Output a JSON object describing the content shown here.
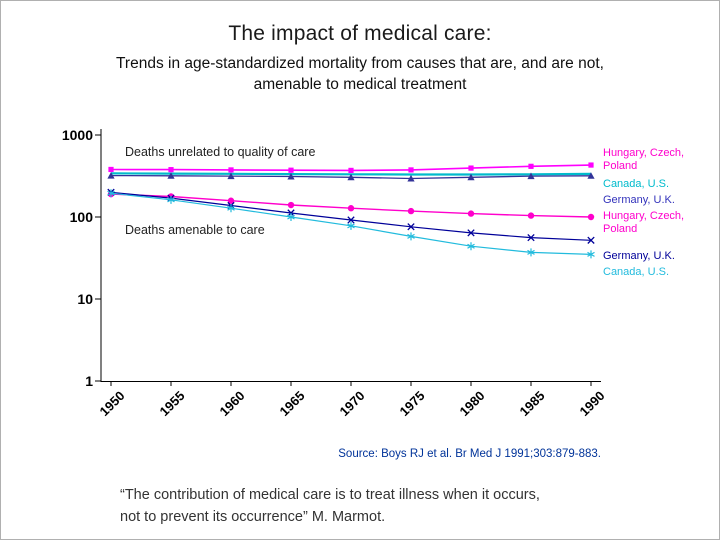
{
  "slide": {
    "title": "The impact of medical care:",
    "subtitle_line1": "Trends in age-standardized mortality from causes that are, and are not,",
    "subtitle_line2": "amenable to medical treatment",
    "source": "Source: Boys RJ et al. Br Med J 1991;303:879-883.",
    "quote_line1": "“The contribution of medical care is to treat illness when it occurs,",
    "quote_line2": "not to prevent its occurrence”  M. Marmot."
  },
  "annotations": {
    "unrelated": "Deaths unrelated to quality of care",
    "amenable": "Deaths amenable to care"
  },
  "legend": [
    {
      "lines": [
        "Hungary, Czech,",
        "Poland"
      ],
      "color": "#FF00CC"
    },
    {
      "lines": [
        "Canada, U.S."
      ],
      "color": "#00BBCC"
    },
    {
      "lines": [
        "Germany, U.K."
      ],
      "color": "#3333BB"
    },
    {
      "lines": [
        "Hungary, Czech,",
        "Poland"
      ],
      "color": "#FF00CC"
    },
    {
      "lines": [
        "Germany, U.K."
      ],
      "color": "#000099"
    },
    {
      "lines": [
        "Canada, U.S."
      ],
      "color": "#22BBDD"
    }
  ],
  "chart_data": {
    "type": "line",
    "title": "",
    "xlabel": "",
    "ylabel": "",
    "y_scale": "log",
    "ylim": [
      1,
      1000
    ],
    "y_ticks": [
      1000,
      100,
      10,
      1
    ],
    "x": [
      1950,
      1955,
      1960,
      1965,
      1970,
      1975,
      1980,
      1985,
      1990
    ],
    "grid": false,
    "legend_position": "right",
    "series": [
      {
        "name": "Deaths unrelated to care - Hungary, Czech, Poland",
        "color": "#FF00FF",
        "marker": "square",
        "width": 1.6,
        "values": [
          380,
          378,
          375,
          372,
          370,
          375,
          395,
          415,
          430
        ]
      },
      {
        "name": "Deaths unrelated to care - Canada, U.S.",
        "color": "#00BBCC",
        "marker": "none",
        "width": 2.2,
        "values": [
          340,
          338,
          336,
          334,
          332,
          330,
          330,
          332,
          335
        ]
      },
      {
        "name": "Deaths unrelated to care - Germany, U.K.",
        "color": "#333399",
        "marker": "triangle",
        "width": 1.3,
        "values": [
          320,
          318,
          315,
          312,
          305,
          295,
          305,
          315,
          318
        ]
      },
      {
        "name": "Deaths amenable to care - Hungary, Czech, Poland",
        "color": "#FF00CC",
        "marker": "circle",
        "width": 1.4,
        "values": [
          190,
          178,
          158,
          140,
          128,
          118,
          110,
          104,
          100
        ]
      },
      {
        "name": "Deaths amenable to care - Germany, U.K.",
        "color": "#000099",
        "marker": "x",
        "width": 1.2,
        "values": [
          200,
          170,
          138,
          112,
          92,
          76,
          64,
          56,
          52
        ]
      },
      {
        "name": "Deaths amenable to care - Canada, U.S.",
        "color": "#22BBDD",
        "marker": "star",
        "width": 1.2,
        "values": [
          195,
          162,
          128,
          100,
          78,
          58,
          44,
          37,
          35
        ]
      }
    ]
  }
}
